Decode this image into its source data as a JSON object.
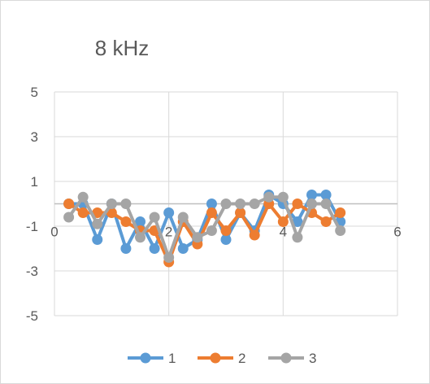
{
  "chart_data": {
    "type": "line",
    "title": "8 kHz",
    "xlabel": "",
    "ylabel": "",
    "xlim": [
      0,
      6
    ],
    "ylim": [
      -5,
      5
    ],
    "x_ticks": [
      "0",
      "2",
      "4",
      "6"
    ],
    "y_ticks": [
      "5",
      "3",
      "1",
      "-1",
      "-3",
      "-5"
    ],
    "grid": true,
    "legend_position": "bottom",
    "x": [
      0.25,
      0.5,
      0.75,
      1.0,
      1.25,
      1.5,
      1.75,
      2.0,
      2.25,
      2.5,
      2.75,
      3.0,
      3.25,
      3.5,
      3.75,
      4.0,
      4.25,
      4.5,
      4.75,
      5.0
    ],
    "series": [
      {
        "name": "1",
        "color": "#5B9BD5",
        "values": [
          0,
          0,
          -1.6,
          0,
          -2.0,
          -0.8,
          -2.0,
          -0.4,
          -2.0,
          -1.6,
          0,
          -1.6,
          -0.4,
          -1.2,
          0.4,
          0,
          -0.8,
          0.4,
          0.4,
          -0.8
        ]
      },
      {
        "name": "2",
        "color": "#ED7D31",
        "values": [
          0,
          -0.4,
          -0.4,
          -0.4,
          -0.8,
          -1.2,
          -1.2,
          -2.6,
          -0.8,
          -1.8,
          -0.4,
          -1.2,
          -0.4,
          -1.4,
          0,
          -0.8,
          0,
          -0.4,
          -0.8,
          -0.4
        ]
      },
      {
        "name": "3",
        "color": "#A5A5A5",
        "values": [
          -0.6,
          0.3,
          -0.9,
          0,
          0,
          -1.5,
          -0.6,
          -2.4,
          -0.6,
          -1.5,
          -1.2,
          0,
          0,
          0,
          0.3,
          0.3,
          -1.5,
          0,
          0,
          -1.2
        ]
      }
    ]
  }
}
